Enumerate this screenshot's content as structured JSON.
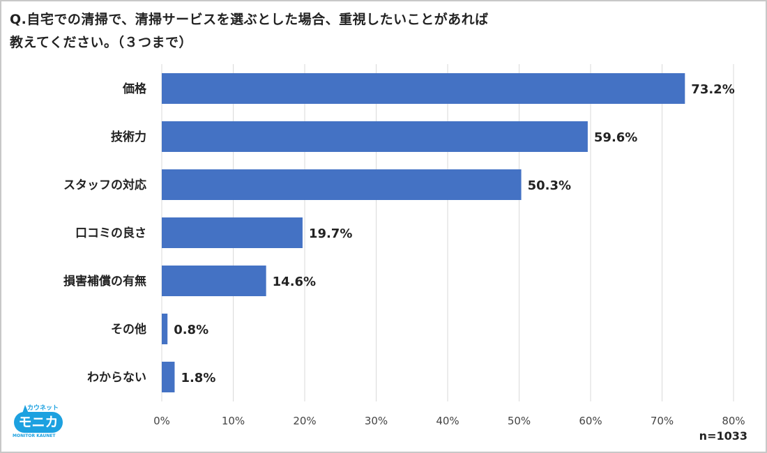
{
  "title_line1": "Q.自宅での清掃で、清掃サービスを選ぶとした場合、重視したいことがあれば",
  "title_line2": "教えてください。（３つまで）",
  "sample_size": "n=1033",
  "logo": {
    "kana": "カウネット",
    "main": "モニカ",
    "english": "MONITOR KAUNET"
  },
  "colors": {
    "bar": "#4472c4",
    "grid": "#d9d9d9",
    "logo": "#1da1e0"
  },
  "chart_data": {
    "type": "bar",
    "orientation": "horizontal",
    "title": "Q.自宅での清掃で、清掃サービスを選ぶとした場合、重視したいことがあれば教えてください。（３つまで）",
    "categories": [
      "価格",
      "技術力",
      "スタッフの対応",
      "口コミの良さ",
      "損害補償の有無",
      "その他",
      "わからない"
    ],
    "values": [
      73.2,
      59.6,
      50.3,
      19.7,
      14.6,
      0.8,
      1.8
    ],
    "labels": [
      "73.2%",
      "59.6%",
      "50.3%",
      "19.7%",
      "14.6%",
      "0.8%",
      "1.8%"
    ],
    "xlim": [
      0,
      80
    ],
    "xticks": [
      0,
      10,
      20,
      30,
      40,
      50,
      60,
      70,
      80
    ],
    "xtick_labels": [
      "0%",
      "10%",
      "20%",
      "30%",
      "40%",
      "50%",
      "60%",
      "70%",
      "80%"
    ],
    "grid": true,
    "xlabel": "",
    "ylabel": ""
  }
}
